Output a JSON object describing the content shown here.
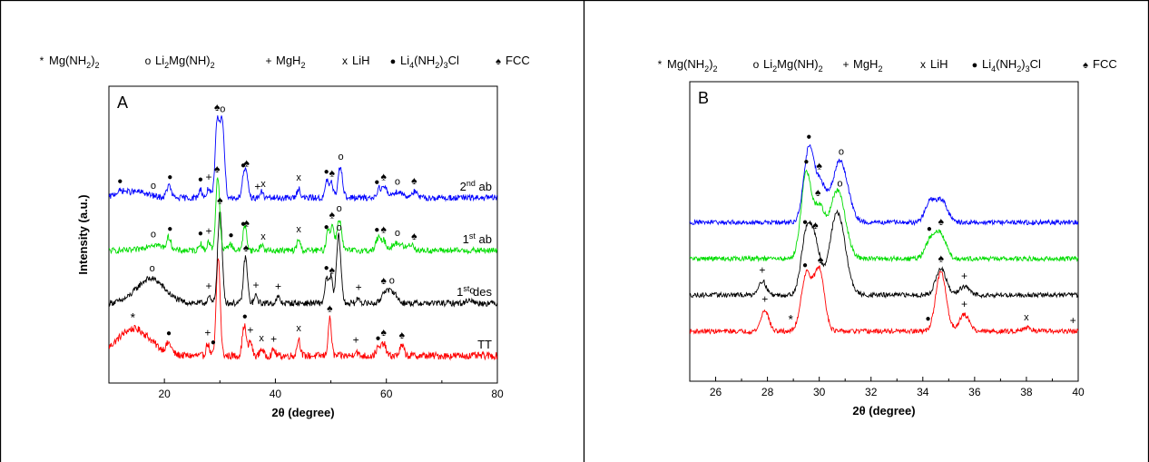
{
  "colors": {
    "TT": "#ff0000",
    "1st des": "#000000",
    "1st ab": "#00dd00",
    "2nd ab": "#0000ff"
  },
  "legend": [
    {
      "symbol": "*",
      "name": "Mg(NH2)2",
      "base": "Mg(NH",
      "sub1": "2",
      "mid": ")",
      "sub2": "2"
    },
    {
      "symbol": "o",
      "name": "Li2Mg(NH)2",
      "base": "Li",
      "sub1": "2",
      "mid": "Mg(NH)",
      "sub2": "2"
    },
    {
      "symbol": "+",
      "name": "MgH2",
      "base": "MgH",
      "sub1": "2",
      "mid": "",
      "sub2": ""
    },
    {
      "symbol": "x",
      "name": "LiH",
      "base": "LiH",
      "sub1": "",
      "mid": "",
      "sub2": ""
    },
    {
      "symbol": "●",
      "name": "Li4(NH2)3Cl",
      "base": "Li",
      "sub1": "4",
      "mid": "(NH",
      "sub2": "2",
      "tail": ")",
      "sub3": "3",
      "end": "Cl"
    },
    {
      "symbol": "♠",
      "name": "FCC",
      "base": "FCC",
      "sub1": "",
      "mid": "",
      "sub2": ""
    }
  ],
  "chart_data": [
    {
      "type": "line",
      "panel_label": "A",
      "xlabel": "2θ (degree)",
      "ylabel": "Intensity (a.u.)",
      "xlim": [
        10,
        80
      ],
      "x_ticks": [
        20,
        40,
        60,
        80
      ],
      "series_labels": [
        {
          "name": "TT",
          "base": "TT",
          "sup": "",
          "rest": ""
        },
        {
          "name": "1st des",
          "base": "1",
          "sup": "st",
          "rest": " des"
        },
        {
          "name": "1st ab",
          "base": "1",
          "sup": "st",
          "rest": " ab"
        },
        {
          "name": "2nd ab",
          "base": "2",
          "sup": "nd",
          "rest": " ab"
        }
      ],
      "series": [
        {
          "name": "TT",
          "offset": 0,
          "noise": 3,
          "peaks": [
            [
              14.5,
              22,
              3
            ],
            [
              20.8,
              8,
              0.5
            ],
            [
              27.8,
              10,
              0.3
            ],
            [
              29.7,
              80,
              0.35
            ],
            [
              34.4,
              25,
              0.35
            ],
            [
              35.5,
              12,
              0.3
            ],
            [
              37.5,
              6,
              0.3
            ],
            [
              39.7,
              5,
              0.3
            ],
            [
              44.2,
              14,
              0.3
            ],
            [
              49.8,
              30,
              0.3
            ],
            [
              54.5,
              4,
              0.3
            ],
            [
              58.5,
              6,
              0.4
            ],
            [
              59.5,
              10,
              0.4
            ],
            [
              62.8,
              8,
              0.4
            ]
          ]
        },
        {
          "name": "1st des",
          "offset": 1,
          "noise": 2.5,
          "peaks": [
            [
              17.5,
              20,
              2.5
            ],
            [
              28,
              5,
              0.3
            ],
            [
              30.0,
              75,
              0.4
            ],
            [
              34.6,
              38,
              0.35
            ],
            [
              36.5,
              6,
              0.3
            ],
            [
              40.5,
              5,
              0.3
            ],
            [
              49.2,
              20,
              0.3
            ],
            [
              50.0,
              22,
              0.3
            ],
            [
              51.4,
              55,
              0.4
            ],
            [
              55,
              4,
              0.3
            ],
            [
              59.6,
              8,
              0.5
            ],
            [
              61,
              10,
              0.8
            ],
            [
              75,
              3,
              0.5
            ]
          ]
        },
        {
          "name": "1st ab",
          "offset": 2,
          "noise": 2.5,
          "peaks": [
            [
              18,
              5,
              1.5
            ],
            [
              20.8,
              10,
              0.4
            ],
            [
              26.5,
              6,
              0.3
            ],
            [
              28,
              7,
              0.3
            ],
            [
              29.6,
              60,
              0.35
            ],
            [
              31.8,
              5,
              0.5
            ],
            [
              34.5,
              20,
              0.35
            ],
            [
              37.5,
              5,
              0.3
            ],
            [
              44.2,
              9,
              0.3
            ],
            [
              49.5,
              18,
              0.3
            ],
            [
              50.3,
              20,
              0.3
            ],
            [
              51.5,
              26,
              0.4
            ],
            [
              58.5,
              10,
              0.4
            ],
            [
              59.5,
              8,
              0.4
            ],
            [
              62,
              6,
              1
            ],
            [
              64.5,
              5,
              0.5
            ]
          ]
        },
        {
          "name": "2nd ab",
          "offset": 3,
          "noise": 2.5,
          "peaks": [
            [
              12,
              4,
              1
            ],
            [
              15,
              5,
              2
            ],
            [
              20.8,
              10,
              0.4
            ],
            [
              26.5,
              7,
              0.3
            ],
            [
              28,
              8,
              0.3
            ],
            [
              29.5,
              60,
              0.35
            ],
            [
              30.4,
              65,
              0.4
            ],
            [
              34.3,
              16,
              0.35
            ],
            [
              34.8,
              14,
              0.35
            ],
            [
              37.5,
              5,
              0.3
            ],
            [
              44.2,
              8,
              0.3
            ],
            [
              49.3,
              14,
              0.3
            ],
            [
              50.1,
              12,
              0.3
            ],
            [
              51.7,
              26,
              0.4
            ],
            [
              58.7,
              8,
              0.4
            ],
            [
              59.7,
              8,
              0.4
            ],
            [
              62,
              5,
              1
            ],
            [
              65,
              5,
              0.5
            ]
          ]
        }
      ],
      "markers": [
        {
          "series": "2nd ab",
          "items": [
            [
              12,
              "●"
            ],
            [
              18,
              "o"
            ],
            [
              21,
              "●"
            ],
            [
              26.5,
              "●"
            ],
            [
              28,
              "+"
            ],
            [
              29.5,
              "♠"
            ],
            [
              30.5,
              "o"
            ],
            [
              34.2,
              "●"
            ],
            [
              34.8,
              "♠"
            ],
            [
              36.8,
              "+"
            ],
            [
              37.8,
              "x"
            ],
            [
              44.2,
              "x"
            ],
            [
              49.2,
              "●"
            ],
            [
              50.2,
              "♠"
            ],
            [
              51.8,
              "o"
            ],
            [
              58.3,
              "●"
            ],
            [
              59.5,
              "♠"
            ],
            [
              62,
              "o"
            ],
            [
              65,
              "♠"
            ]
          ]
        },
        {
          "series": "1st ab",
          "items": [
            [
              18,
              "o"
            ],
            [
              21,
              "●"
            ],
            [
              26.5,
              "●"
            ],
            [
              28,
              "+"
            ],
            [
              29.5,
              "♠"
            ],
            [
              32,
              "●"
            ],
            [
              34.2,
              "●"
            ],
            [
              34.8,
              "♠"
            ],
            [
              37.8,
              "x"
            ],
            [
              44.2,
              "x"
            ],
            [
              49.2,
              "●"
            ],
            [
              50.2,
              "♠"
            ],
            [
              51.5,
              "o"
            ],
            [
              58.3,
              "●"
            ],
            [
              59.5,
              "♠"
            ],
            [
              62,
              "o"
            ],
            [
              65,
              "♠"
            ]
          ]
        },
        {
          "series": "1st des",
          "items": [
            [
              17.8,
              "o"
            ],
            [
              28,
              "+"
            ],
            [
              30,
              "♠"
            ],
            [
              34.7,
              "♠"
            ],
            [
              36.5,
              "+"
            ],
            [
              40.5,
              "+"
            ],
            [
              49.2,
              "●"
            ],
            [
              50.2,
              "♠"
            ],
            [
              51.5,
              "o"
            ],
            [
              55,
              "+"
            ],
            [
              59.5,
              "♠"
            ],
            [
              61,
              "o"
            ],
            [
              75.5,
              "o"
            ]
          ]
        },
        {
          "series": "TT",
          "items": [
            [
              14.3,
              "*"
            ],
            [
              20.8,
              "●"
            ],
            [
              27.8,
              "+"
            ],
            [
              28.8,
              "●"
            ],
            [
              34.5,
              "●"
            ],
            [
              35.5,
              "+"
            ],
            [
              37.5,
              "x"
            ],
            [
              39.7,
              "+"
            ],
            [
              44.2,
              "x"
            ],
            [
              49.8,
              "♠"
            ],
            [
              54.5,
              "+"
            ],
            [
              58.5,
              "●"
            ],
            [
              59.5,
              "♠"
            ],
            [
              62.8,
              "♠"
            ]
          ]
        }
      ]
    },
    {
      "type": "line",
      "panel_label": "B",
      "xlabel": "2θ (degree)",
      "ylabel": "",
      "xlim": [
        25,
        40
      ],
      "x_ticks": [
        26,
        28,
        30,
        32,
        34,
        36,
        38,
        40
      ],
      "series": [
        {
          "name": "TT",
          "offset": 0,
          "noise": 2,
          "peaks": [
            [
              27.9,
              18,
              0.15
            ],
            [
              29.5,
              48,
              0.2
            ],
            [
              30.0,
              52,
              0.2
            ],
            [
              34.7,
              50,
              0.2
            ],
            [
              35.6,
              14,
              0.2
            ],
            [
              38,
              3,
              0.2
            ]
          ]
        },
        {
          "name": "1st des",
          "offset": 1,
          "noise": 2,
          "peaks": [
            [
              27.8,
              12,
              0.15
            ],
            [
              29.5,
              50,
              0.2
            ],
            [
              29.85,
              38,
              0.2
            ],
            [
              30.7,
              70,
              0.3
            ],
            [
              34.7,
              22,
              0.2
            ],
            [
              35.6,
              7,
              0.2
            ]
          ]
        },
        {
          "name": "1st ab",
          "offset": 2,
          "noise": 2,
          "peaks": [
            [
              29.5,
              72,
              0.2
            ],
            [
              30.0,
              40,
              0.2
            ],
            [
              30.7,
              58,
              0.3
            ],
            [
              34.3,
              16,
              0.2
            ],
            [
              34.7,
              20,
              0.2
            ]
          ]
        },
        {
          "name": "2nd ab",
          "offset": 3,
          "noise": 2,
          "peaks": [
            [
              29.6,
              62,
              0.2
            ],
            [
              30.05,
              30,
              0.2
            ],
            [
              30.8,
              52,
              0.3
            ],
            [
              34.3,
              18,
              0.2
            ],
            [
              34.75,
              18,
              0.2
            ]
          ]
        }
      ],
      "markers": [
        {
          "series": "2nd ab",
          "items": [
            [
              29.6,
              "●"
            ],
            [
              30.0,
              "♠"
            ],
            [
              30.85,
              "o"
            ]
          ]
        },
        {
          "series": "1st ab",
          "items": [
            [
              29.5,
              "●"
            ],
            [
              29.95,
              "♠"
            ],
            [
              30.8,
              "o"
            ],
            [
              34.25,
              "●"
            ],
            [
              34.7,
              "♠"
            ]
          ]
        },
        {
          "series": "1st des",
          "items": [
            [
              27.8,
              "+"
            ],
            [
              29.45,
              "●"
            ],
            [
              29.85,
              "♠"
            ],
            [
              34.7,
              "♠"
            ],
            [
              35.6,
              "+"
            ]
          ]
        },
        {
          "series": "TT",
          "items": [
            [
              27.9,
              "+"
            ],
            [
              28.9,
              "*"
            ],
            [
              29.45,
              "●"
            ],
            [
              30.05,
              "♠"
            ],
            [
              34.2,
              "●"
            ],
            [
              35.6,
              "+"
            ],
            [
              38,
              "x"
            ],
            [
              39.8,
              "+"
            ]
          ]
        }
      ]
    }
  ]
}
